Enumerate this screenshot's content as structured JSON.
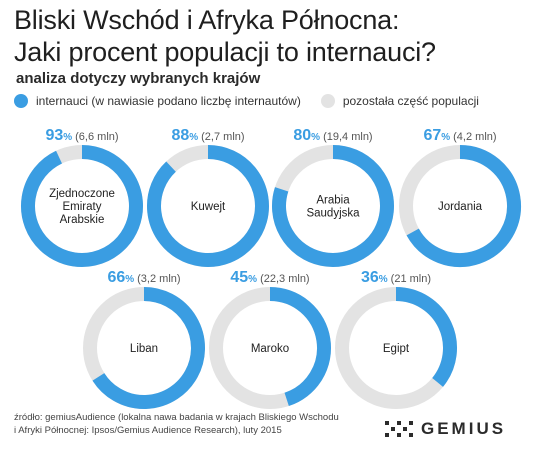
{
  "title_line1": "Bliski Wschód i Afryka Północna:",
  "title_line2": "Jaki procent populacji to internauci?",
  "subtitle": "analiza dotyczy wybranych krajów",
  "legend": {
    "internet": "internauci (w nawiasie podano liczbę internautów)",
    "rest": "pozostała część populacji"
  },
  "colors": {
    "internet": "#3a9de2",
    "rest": "#e3e3e3",
    "pct_text": "#3a9de2"
  },
  "chart_data": {
    "type": "donut",
    "unit": "%",
    "series": [
      {
        "name": "internauci",
        "values": [
          93,
          88,
          80,
          67,
          66,
          45,
          36
        ]
      },
      {
        "name": "pozostała część populacji",
        "values": [
          7,
          12,
          20,
          33,
          34,
          55,
          64
        ]
      }
    ],
    "items": [
      {
        "country_lines": [
          "Zjednoczone",
          "Emiraty",
          "Arabskie"
        ],
        "percent": 93,
        "pct_label": "93",
        "pct_sign": "%",
        "users": "(6,6 mln)"
      },
      {
        "country_lines": [
          "Kuwejt"
        ],
        "percent": 88,
        "pct_label": "88",
        "pct_sign": "%",
        "users": "(2,7 mln)"
      },
      {
        "country_lines": [
          "Arabia",
          "Saudyjska"
        ],
        "percent": 80,
        "pct_label": "80",
        "pct_sign": "%",
        "users": "(19,4 mln)"
      },
      {
        "country_lines": [
          "Jordania"
        ],
        "percent": 67,
        "pct_label": "67",
        "pct_sign": "%",
        "users": "(4,2 mln)"
      },
      {
        "country_lines": [
          "Liban"
        ],
        "percent": 66,
        "pct_label": "66",
        "pct_sign": "%",
        "users": "(3,2 mln)"
      },
      {
        "country_lines": [
          "Maroko"
        ],
        "percent": 45,
        "pct_label": "45",
        "pct_sign": "%",
        "users": "(22,3 mln)"
      },
      {
        "country_lines": [
          "Egipt"
        ],
        "percent": 36,
        "pct_label": "36",
        "pct_sign": "%",
        "users": "(21 mln)"
      }
    ]
  },
  "footer_line1": "źródło: gemiusAudience (lokalna nawa badania w krajach Bliskiego Wschodu",
  "footer_line2": "i Afryki Północnej: Ipsos/Gemius Audience Research), luty 2015",
  "logo_text": "GEMIUS"
}
